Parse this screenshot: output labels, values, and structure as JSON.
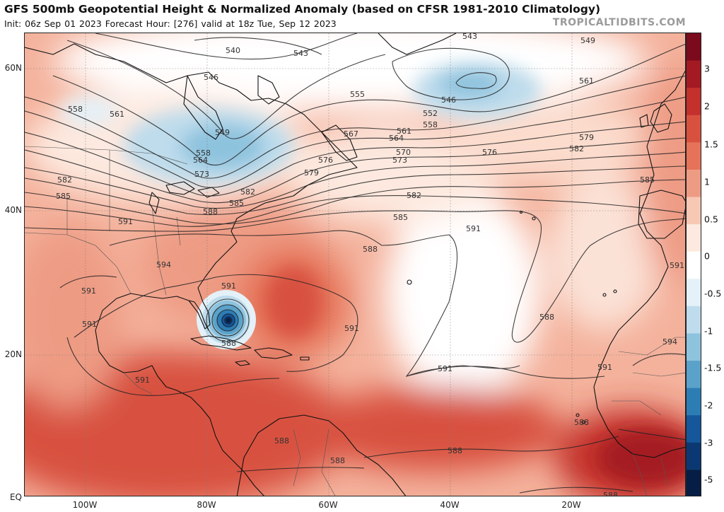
{
  "header": {
    "title": "GFS 500mb Geopotential Height & Normalized Anomaly (based on CFSR 1981-2010 Climatology)",
    "subtitle": "Init: 06z Sep 01 2023   Forecast Hour: [276]   valid at 18z Tue, Sep 12 2023",
    "credit": "TROPICALTIDBITS.COM"
  },
  "axes": {
    "lat_labels": [
      "60N",
      "40N",
      "20N",
      "EQ"
    ],
    "lon_labels": [
      "100W",
      "80W",
      "60W",
      "40W",
      "20W"
    ]
  },
  "colorbar": {
    "labels": [
      "3",
      "2",
      "1.5",
      "1",
      "0.5",
      "0",
      "-0.5",
      "-1",
      "-1.5",
      "-2",
      "-3",
      "-5"
    ],
    "colors": [
      "#7a0a1c",
      "#a41a23",
      "#c4302c",
      "#d8513f",
      "#e57359",
      "#ee9b84",
      "#f7c8b4",
      "#fde9df",
      "#ffffff",
      "#e4f1f8",
      "#bedcec",
      "#8ec3de",
      "#5aa2ca",
      "#2d7db5",
      "#15579a",
      "#0b3872",
      "#061e45"
    ]
  },
  "contour_labels": [
    {
      "id": "543a",
      "text": "543"
    },
    {
      "id": "543b",
      "text": "543"
    },
    {
      "id": "549a",
      "text": "549"
    },
    {
      "id": "540",
      "text": "540"
    },
    {
      "id": "546a",
      "text": "546"
    },
    {
      "id": "546b",
      "text": "546"
    },
    {
      "id": "549b",
      "text": "549"
    },
    {
      "id": "552",
      "text": "552"
    },
    {
      "id": "555",
      "text": "555"
    },
    {
      "id": "558a",
      "text": "558"
    },
    {
      "id": "558b",
      "text": "558"
    },
    {
      "id": "558c",
      "text": "558"
    },
    {
      "id": "561a",
      "text": "561"
    },
    {
      "id": "561b",
      "text": "561"
    },
    {
      "id": "561c",
      "text": "561"
    },
    {
      "id": "564a",
      "text": "564"
    },
    {
      "id": "564b",
      "text": "564"
    },
    {
      "id": "567",
      "text": "567"
    },
    {
      "id": "570",
      "text": "570"
    },
    {
      "id": "573a",
      "text": "573"
    },
    {
      "id": "573b",
      "text": "573"
    },
    {
      "id": "576a",
      "text": "576"
    },
    {
      "id": "576b",
      "text": "576"
    },
    {
      "id": "579a",
      "text": "579"
    },
    {
      "id": "579b",
      "text": "579"
    },
    {
      "id": "582a",
      "text": "582"
    },
    {
      "id": "582b",
      "text": "582"
    },
    {
      "id": "582c",
      "text": "582"
    },
    {
      "id": "582d",
      "text": "582"
    },
    {
      "id": "585a",
      "text": "585"
    },
    {
      "id": "585b",
      "text": "585"
    },
    {
      "id": "585c",
      "text": "585"
    },
    {
      "id": "585d",
      "text": "585"
    },
    {
      "id": "588a",
      "text": "588"
    },
    {
      "id": "588b",
      "text": "588"
    },
    {
      "id": "588c",
      "text": "588"
    },
    {
      "id": "588d",
      "text": "588"
    },
    {
      "id": "588e",
      "text": "588"
    },
    {
      "id": "588f",
      "text": "588"
    },
    {
      "id": "588g",
      "text": "588"
    },
    {
      "id": "588h",
      "text": "588"
    },
    {
      "id": "588i",
      "text": "588"
    },
    {
      "id": "591a",
      "text": "591"
    },
    {
      "id": "591b",
      "text": "591"
    },
    {
      "id": "591c",
      "text": "591"
    },
    {
      "id": "591d",
      "text": "591"
    },
    {
      "id": "591e",
      "text": "591"
    },
    {
      "id": "591f",
      "text": "591"
    },
    {
      "id": "591g",
      "text": "591"
    },
    {
      "id": "591h",
      "text": "591"
    },
    {
      "id": "591i",
      "text": "591"
    },
    {
      "id": "591j",
      "text": "591"
    },
    {
      "id": "594a",
      "text": "594"
    },
    {
      "id": "594b",
      "text": "594"
    }
  ]
}
